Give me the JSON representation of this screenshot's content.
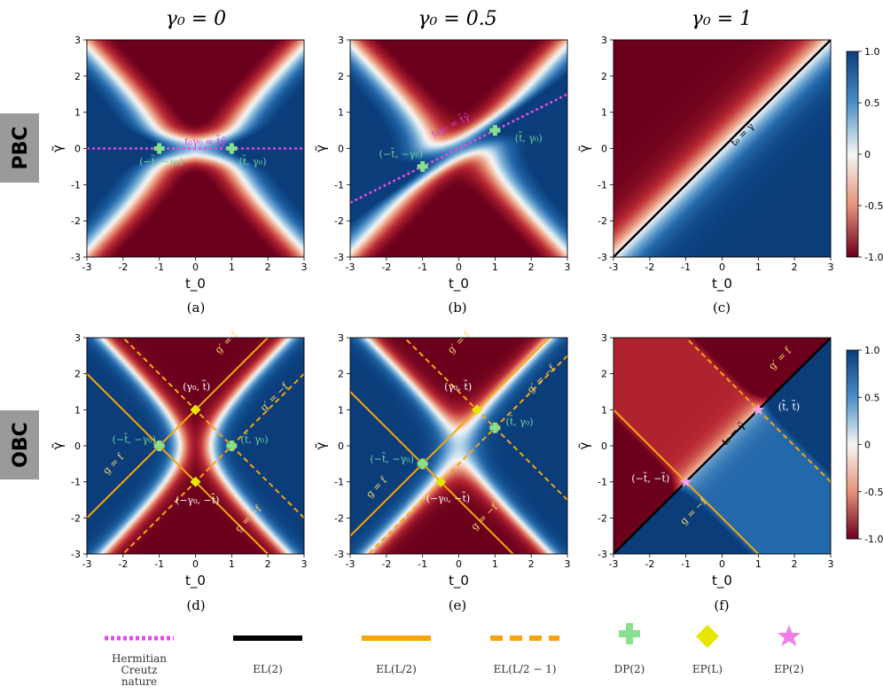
{
  "chart_data": {
    "type": "heatmap",
    "axes": {
      "xlabel": "t_0",
      "ylabel": "γ̃",
      "xlim": [
        -3,
        3
      ],
      "ylim": [
        -3,
        3
      ],
      "ticks": [
        -3,
        -2,
        -1,
        0,
        1,
        2,
        3
      ]
    },
    "row_labels": [
      "PBC",
      "OBC"
    ],
    "column_titles": [
      "γ₀ = 0",
      "γ₀ = 0.5",
      "γ₀ = 1"
    ],
    "colorbars": [
      {
        "row": "PBC",
        "tick_labels": [
          "1.0",
          "0.5",
          "0",
          "-0.5",
          "-1.0"
        ],
        "ticks": [
          1,
          0.5,
          0,
          -0.5,
          -1
        ]
      },
      {
        "row": "OBC",
        "tick_labels": [
          "1.0",
          "0.5",
          "0",
          "-0.5",
          "-1.0"
        ],
        "ticks": [
          1,
          0.5,
          0,
          -0.5,
          -1
        ]
      }
    ],
    "panels": [
      {
        "caption": "(a)",
        "gamma0": 0,
        "row": "PBC",
        "annotations": [
          {
            "text": "t₀γ₀ = t̃γ̃",
            "x": -0.3,
            "y": 0.1,
            "color": "#d63ad6",
            "rotate": 0
          },
          {
            "text": "(−t̃, −γ₀)",
            "x": -1.55,
            "y": -0.45,
            "color": "#6fd49a",
            "rotate": 0
          },
          {
            "text": "(t̃, γ₀)",
            "x": 1.2,
            "y": -0.45,
            "color": "#6fd49a",
            "rotate": 0
          }
        ]
      },
      {
        "caption": "(b)",
        "gamma0": 0.5,
        "row": "PBC",
        "annotations": [
          {
            "text": "t₀γ₀ = t̃γ̃",
            "x": -0.7,
            "y": 0.3,
            "color": "#d63ad6",
            "rotate": -27
          },
          {
            "text": "(−t̃, −γ₀)",
            "x": -2.2,
            "y": -0.25,
            "color": "#6fd49a",
            "rotate": 0
          },
          {
            "text": "(t̃, γ₀)",
            "x": 1.55,
            "y": 0.2,
            "color": "#6fd49a",
            "rotate": 0
          }
        ]
      },
      {
        "caption": "(c)",
        "gamma0": 1,
        "row": "PBC",
        "annotations": [
          {
            "text": "t₀ = γ̃",
            "x": 0.35,
            "y": 0.05,
            "color": "#000000",
            "rotate": -45
          }
        ]
      },
      {
        "caption": "(d)",
        "gamma0": 0,
        "row": "OBC",
        "annotations": [
          {
            "text": "(γ₀, t̃)",
            "x": -0.35,
            "y": 1.55,
            "color": "#ffffff",
            "rotate": 0
          },
          {
            "text": "(−t̃, −γ₀)",
            "x": -2.3,
            "y": 0.08,
            "color": "#6fd49a",
            "rotate": 0
          },
          {
            "text": "(t̃, γ₀)",
            "x": 1.25,
            "y": 0.08,
            "color": "#6fd49a",
            "rotate": 0
          },
          {
            "text": "(−γ₀, −t̃)",
            "x": -0.55,
            "y": -1.6,
            "color": "#ffffff",
            "rotate": 0
          },
          {
            "text": "g′ = f",
            "x": 0.65,
            "y": 2.55,
            "color": "#ffd76e",
            "rotate": -45
          },
          {
            "text": "g′ = −f",
            "x": 1.9,
            "y": 0.95,
            "color": "#ffd76e",
            "rotate": -45
          },
          {
            "text": "g = f",
            "x": -2.45,
            "y": -0.8,
            "color": "#ffd76e",
            "rotate": -45
          },
          {
            "text": "g = −f",
            "x": 1.2,
            "y": -2.4,
            "color": "#ffd76e",
            "rotate": -45
          }
        ]
      },
      {
        "caption": "(e)",
        "gamma0": 0.5,
        "row": "OBC",
        "annotations": [
          {
            "text": "(γ₀, t̃)",
            "x": -0.4,
            "y": 1.55,
            "color": "#ffffff",
            "rotate": 0
          },
          {
            "text": "(−t̃, −γ₀)",
            "x": -2.45,
            "y": -0.45,
            "color": "#6fd49a",
            "rotate": 0
          },
          {
            "text": "(t̃, γ₀)",
            "x": 1.3,
            "y": 0.58,
            "color": "#6fd49a",
            "rotate": 0
          },
          {
            "text": "(−γ₀, −t̃)",
            "x": -0.9,
            "y": -1.55,
            "color": "#ffffff",
            "rotate": 0
          },
          {
            "text": "g′ = f",
            "x": -0.2,
            "y": 2.55,
            "color": "#ffd76e",
            "rotate": -45
          },
          {
            "text": "g′ = −f",
            "x": 2.0,
            "y": 1.45,
            "color": "#ffd76e",
            "rotate": -45
          },
          {
            "text": "g = f",
            "x": -2.45,
            "y": -1.45,
            "color": "#ffd76e",
            "rotate": -45
          },
          {
            "text": "g = −f",
            "x": 0.45,
            "y": -2.35,
            "color": "#ffd76e",
            "rotate": -45
          }
        ]
      },
      {
        "caption": "(f)",
        "gamma0": 1,
        "row": "OBC",
        "annotations": [
          {
            "text": "(t̃, t̃)",
            "x": 1.55,
            "y": 1.0,
            "color": "#ffffff",
            "rotate": 0
          },
          {
            "text": "(−t̃, −t̃)",
            "x": -2.5,
            "y": -1.0,
            "color": "#ffffff",
            "rotate": 0
          },
          {
            "text": "t₀ = γ̃",
            "x": 0.1,
            "y": 0.0,
            "color": "#000000",
            "rotate": -45
          },
          {
            "text": "g′ = f",
            "x": 1.4,
            "y": 2.1,
            "color": "#ffd76e",
            "rotate": -45
          },
          {
            "text": "g = −f",
            "x": -1.05,
            "y": -2.2,
            "color": "#ffd76e",
            "rotate": -45
          }
        ]
      }
    ]
  },
  "legend": [
    {
      "name": "Hermitian Creutz nature",
      "style": "dotted-magenta",
      "lines": [
        "Hermitian",
        "Creutz",
        "nature"
      ]
    },
    {
      "name": "EL(2)",
      "style": "solid-black",
      "lines": [
        "EL(2)"
      ]
    },
    {
      "name": "EL(L/2)",
      "style": "solid-orange",
      "lines": [
        "EL(L/2)"
      ]
    },
    {
      "name": "EL(L/2 − 1)",
      "style": "dashed-orange",
      "lines": [
        "EL(L/2 − 1)"
      ]
    },
    {
      "name": "DP(2)",
      "style": "green-plus",
      "lines": [
        "DP(2)"
      ]
    },
    {
      "name": "EP(L)",
      "style": "yellow-diamond",
      "lines": [
        "EP(L)"
      ]
    },
    {
      "name": "EP(2)",
      "style": "pink-star",
      "lines": [
        "EP(2)"
      ]
    }
  ]
}
